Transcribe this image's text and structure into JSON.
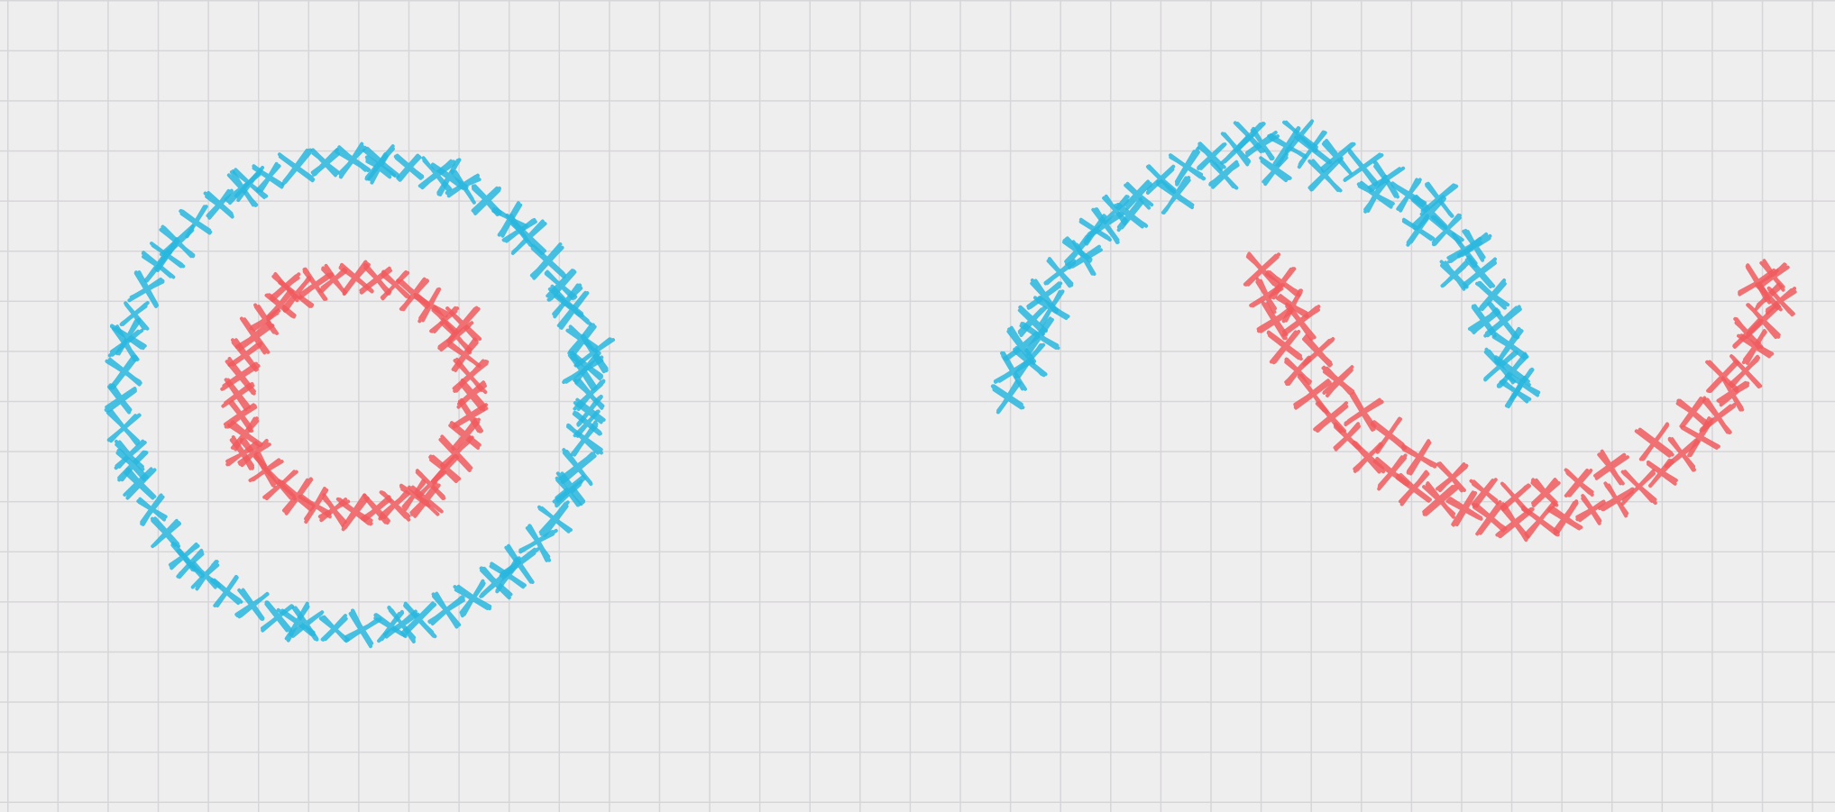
{
  "colors": {
    "background": "#efeeef",
    "grid": "#d6d5d7",
    "class_a": "#29b6de",
    "class_b": "#f05a5e"
  },
  "chart_data": [
    {
      "type": "scatter",
      "title": "",
      "xlabel": "",
      "ylabel": "",
      "marker": "x",
      "grid": true,
      "legend": "none",
      "xlim": [
        -1.3,
        1.3
      ],
      "ylim": [
        -1.3,
        1.3
      ],
      "series": [
        {
          "color": "#29b6de",
          "points": [
            [
              1.0,
              0.0
            ],
            [
              0.99,
              0.12
            ],
            [
              0.97,
              0.24
            ],
            [
              0.93,
              0.36
            ],
            [
              0.88,
              0.47
            ],
            [
              0.82,
              0.57
            ],
            [
              0.74,
              0.67
            ],
            [
              0.66,
              0.75
            ],
            [
              0.56,
              0.83
            ],
            [
              0.46,
              0.89
            ],
            [
              0.35,
              0.94
            ],
            [
              0.23,
              0.97
            ],
            [
              0.11,
              0.99
            ],
            [
              -0.01,
              1.0
            ],
            [
              -0.13,
              0.99
            ],
            [
              -0.25,
              0.97
            ],
            [
              -0.37,
              0.93
            ],
            [
              -0.48,
              0.88
            ],
            [
              -0.58,
              0.81
            ],
            [
              -0.68,
              0.74
            ],
            [
              -0.76,
              0.65
            ],
            [
              -0.84,
              0.55
            ],
            [
              -0.89,
              0.45
            ],
            [
              -0.94,
              0.34
            ],
            [
              -0.98,
              0.22
            ],
            [
              -0.99,
              0.1
            ],
            [
              -1.0,
              -0.02
            ],
            [
              -0.99,
              -0.14
            ],
            [
              -0.96,
              -0.26
            ],
            [
              -0.92,
              -0.38
            ],
            [
              -0.87,
              -0.49
            ],
            [
              -0.81,
              -0.59
            ],
            [
              -0.73,
              -0.69
            ],
            [
              -0.64,
              -0.77
            ],
            [
              -0.55,
              -0.84
            ],
            [
              -0.44,
              -0.9
            ],
            [
              -0.33,
              -0.95
            ],
            [
              -0.21,
              -0.98
            ],
            [
              -0.09,
              -1.0
            ],
            [
              0.03,
              -1.0
            ],
            [
              0.15,
              -0.99
            ],
            [
              0.27,
              -0.96
            ],
            [
              0.39,
              -0.92
            ],
            [
              0.5,
              -0.87
            ],
            [
              0.6,
              -0.8
            ],
            [
              0.7,
              -0.72
            ],
            [
              0.78,
              -0.63
            ],
            [
              0.85,
              -0.53
            ],
            [
              0.91,
              -0.42
            ],
            [
              0.95,
              -0.31
            ],
            [
              0.98,
              -0.19
            ],
            [
              1.0,
              -0.07
            ],
            [
              0.97,
              0.1
            ],
            [
              0.9,
              0.4
            ],
            [
              0.7,
              0.7
            ],
            [
              0.4,
              0.93
            ],
            [
              0.1,
              0.97
            ],
            [
              -0.45,
              0.9
            ],
            [
              -0.8,
              0.6
            ],
            [
              -0.97,
              0.25
            ],
            [
              -0.95,
              -0.3
            ],
            [
              -0.7,
              -0.72
            ],
            [
              -0.25,
              -0.97
            ],
            [
              0.2,
              -0.98
            ],
            [
              0.65,
              -0.77
            ],
            [
              0.92,
              -0.4
            ],
            [
              1.02,
              0.18
            ],
            [
              0.99,
              -0.12
            ]
          ]
        },
        {
          "color": "#f05a5e",
          "points": [
            [
              0.5,
              0.0
            ],
            [
              0.49,
              0.08
            ],
            [
              0.47,
              0.17
            ],
            [
              0.43,
              0.25
            ],
            [
              0.38,
              0.32
            ],
            [
              0.32,
              0.38
            ],
            [
              0.25,
              0.43
            ],
            [
              0.17,
              0.47
            ],
            [
              0.09,
              0.49
            ],
            [
              0.0,
              0.5
            ],
            [
              -0.09,
              0.49
            ],
            [
              -0.17,
              0.47
            ],
            [
              -0.25,
              0.43
            ],
            [
              -0.32,
              0.38
            ],
            [
              -0.38,
              0.32
            ],
            [
              -0.43,
              0.25
            ],
            [
              -0.47,
              0.17
            ],
            [
              -0.49,
              0.08
            ],
            [
              -0.5,
              0.0
            ],
            [
              -0.49,
              -0.09
            ],
            [
              -0.47,
              -0.17
            ],
            [
              -0.43,
              -0.25
            ],
            [
              -0.38,
              -0.32
            ],
            [
              -0.32,
              -0.38
            ],
            [
              -0.25,
              -0.43
            ],
            [
              -0.17,
              -0.47
            ],
            [
              -0.09,
              -0.49
            ],
            [
              0.0,
              -0.5
            ],
            [
              0.09,
              -0.49
            ],
            [
              0.17,
              -0.47
            ],
            [
              0.25,
              -0.43
            ],
            [
              0.32,
              -0.38
            ],
            [
              0.38,
              -0.32
            ],
            [
              0.43,
              -0.25
            ],
            [
              0.47,
              -0.17
            ],
            [
              0.49,
              -0.09
            ],
            [
              0.46,
              0.3
            ],
            [
              -0.3,
              0.46
            ],
            [
              -0.48,
              -0.25
            ],
            [
              0.3,
              -0.45
            ]
          ]
        }
      ]
    },
    {
      "type": "scatter",
      "title": "",
      "xlabel": "",
      "ylabel": "",
      "marker": "x",
      "grid": true,
      "legend": "none",
      "xlim": [
        -1.15,
        2.2
      ],
      "ylim": [
        -0.75,
        1.25
      ],
      "series": [
        {
          "color": "#29b6de",
          "points": [
            [
              -1.0,
              0.0
            ],
            [
              -0.98,
              0.1
            ],
            [
              -0.95,
              0.2
            ],
            [
              -0.91,
              0.3
            ],
            [
              -0.86,
              0.4
            ],
            [
              -0.8,
              0.49
            ],
            [
              -0.73,
              0.58
            ],
            [
              -0.66,
              0.66
            ],
            [
              -0.58,
              0.74
            ],
            [
              -0.49,
              0.8
            ],
            [
              -0.4,
              0.86
            ],
            [
              -0.3,
              0.91
            ],
            [
              -0.2,
              0.95
            ],
            [
              -0.1,
              0.98
            ],
            [
              0.0,
              1.0
            ],
            [
              0.1,
              0.99
            ],
            [
              0.2,
              0.98
            ],
            [
              0.3,
              0.95
            ],
            [
              0.4,
              0.91
            ],
            [
              0.49,
              0.86
            ],
            [
              0.58,
              0.8
            ],
            [
              0.66,
              0.73
            ],
            [
              0.73,
              0.66
            ],
            [
              0.8,
              0.58
            ],
            [
              0.86,
              0.49
            ],
            [
              0.91,
              0.4
            ],
            [
              0.95,
              0.3
            ],
            [
              0.98,
              0.2
            ],
            [
              0.99,
              0.1
            ],
            [
              1.0,
              0.02
            ],
            [
              -0.92,
              0.14
            ],
            [
              -0.83,
              0.35
            ],
            [
              -0.7,
              0.55
            ],
            [
              -0.52,
              0.72
            ],
            [
              -0.34,
              0.8
            ],
            [
              -0.15,
              0.88
            ],
            [
              0.05,
              0.9
            ],
            [
              0.25,
              0.88
            ],
            [
              0.45,
              0.8
            ],
            [
              0.62,
              0.66
            ],
            [
              0.76,
              0.48
            ],
            [
              0.88,
              0.3
            ],
            [
              0.94,
              0.12
            ],
            [
              1.03,
              0.05
            ],
            [
              -0.05,
              1.03
            ],
            [
              0.15,
              1.03
            ],
            [
              0.7,
              0.78
            ],
            [
              0.84,
              0.6
            ],
            [
              -0.62,
              0.68
            ],
            [
              -0.88,
              0.24
            ]
          ]
        },
        {
          "color": "#f05a5e",
          "points": [
            [
              0.0,
              0.5
            ],
            [
              0.02,
              0.4
            ],
            [
              0.05,
              0.3
            ],
            [
              0.09,
              0.2
            ],
            [
              0.14,
              0.1
            ],
            [
              0.2,
              0.01
            ],
            [
              0.27,
              -0.08
            ],
            [
              0.34,
              -0.16
            ],
            [
              0.42,
              -0.24
            ],
            [
              0.51,
              -0.3
            ],
            [
              0.6,
              -0.36
            ],
            [
              0.7,
              -0.41
            ],
            [
              0.8,
              -0.45
            ],
            [
              0.9,
              -0.48
            ],
            [
              1.0,
              -0.5
            ],
            [
              1.1,
              -0.49
            ],
            [
              1.2,
              -0.48
            ],
            [
              1.3,
              -0.45
            ],
            [
              1.4,
              -0.41
            ],
            [
              1.49,
              -0.36
            ],
            [
              1.58,
              -0.3
            ],
            [
              1.66,
              -0.23
            ],
            [
              1.73,
              -0.16
            ],
            [
              1.8,
              -0.08
            ],
            [
              1.86,
              0.01
            ],
            [
              1.91,
              0.1
            ],
            [
              1.95,
              0.2
            ],
            [
              1.98,
              0.3
            ],
            [
              2.0,
              0.4
            ],
            [
              2.02,
              0.48
            ],
            [
              0.08,
              0.45
            ],
            [
              0.15,
              0.3
            ],
            [
              0.22,
              0.18
            ],
            [
              0.3,
              0.06
            ],
            [
              0.4,
              -0.06
            ],
            [
              0.5,
              -0.15
            ],
            [
              0.62,
              -0.24
            ],
            [
              0.75,
              -0.32
            ],
            [
              0.88,
              -0.38
            ],
            [
              1.0,
              -0.4
            ],
            [
              1.12,
              -0.38
            ],
            [
              1.25,
              -0.34
            ],
            [
              1.38,
              -0.28
            ],
            [
              1.55,
              -0.18
            ],
            [
              1.7,
              -0.06
            ],
            [
              1.82,
              0.08
            ],
            [
              1.92,
              0.25
            ],
            [
              2.05,
              0.38
            ],
            [
              1.96,
              0.45
            ],
            [
              0.12,
              0.36
            ]
          ]
        }
      ]
    }
  ]
}
